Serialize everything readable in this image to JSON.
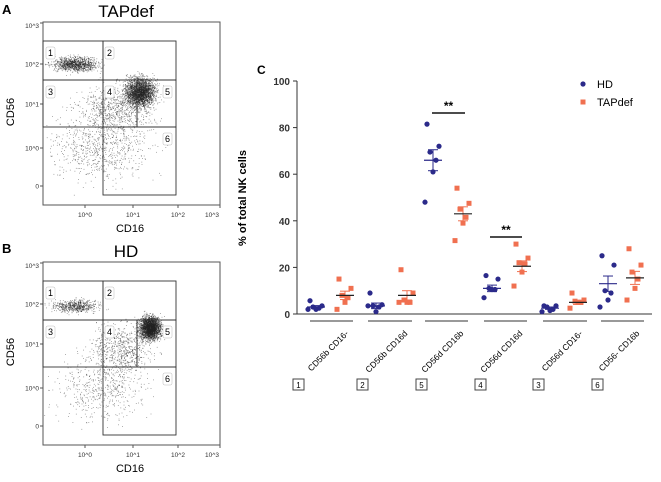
{
  "panels": {
    "A": {
      "letter": "A",
      "title": "TAPdef",
      "xlabel": "CD16",
      "ylabel": "CD56"
    },
    "B": {
      "letter": "B",
      "title": "HD",
      "xlabel": "CD16",
      "ylabel": "CD56"
    },
    "C": {
      "letter": "C"
    }
  },
  "flow_axes": {
    "x_ticks": [
      "10^0",
      "10^1",
      "10^2",
      "10^3"
    ],
    "y_ticks": [
      "10^3",
      "10^2",
      "10^1",
      "10^0",
      "0"
    ]
  },
  "gates": [
    "1",
    "2",
    "3",
    "4",
    "5",
    "6"
  ],
  "colors": {
    "HD": "#2b2a8a",
    "TAPdef": "#f07050"
  },
  "chart_data": {
    "type": "scatter",
    "ylabel": "% of total NK cells",
    "ylim": [
      0,
      100
    ],
    "yticks": [
      0,
      20,
      40,
      60,
      80,
      100
    ],
    "legend": {
      "placement": "top-right",
      "entries": [
        "HD",
        "TAPdef"
      ]
    },
    "categories": [
      {
        "label": "CD56b CD16-",
        "gate": "1"
      },
      {
        "label": "CD56b CD16d",
        "gate": "2"
      },
      {
        "label": "CD56d CD16b",
        "gate": "5"
      },
      {
        "label": "CD56d CD16d",
        "gate": "4"
      },
      {
        "label": "CD56d CD16-",
        "gate": "3"
      },
      {
        "label": "CD56- CD16b",
        "gate": "6"
      }
    ],
    "series": [
      {
        "name": "HD",
        "marker": "circle",
        "values": [
          [
            5.7,
            3.5,
            3,
            2.5,
            2,
            2
          ],
          [
            9,
            4,
            3.5,
            3,
            1,
            3.5
          ],
          [
            81.5,
            72,
            69.5,
            66,
            61,
            48
          ],
          [
            16.5,
            15,
            11,
            10.5,
            10.5,
            7
          ],
          [
            3.5,
            3.5,
            3,
            2,
            1.5,
            1
          ],
          [
            25,
            21,
            10,
            9,
            6,
            3
          ]
        ],
        "mean": [
          3,
          3.5,
          66,
          11,
          2.5,
          13
        ],
        "sem": [
          0.6,
          1.2,
          4.5,
          1.4,
          0.5,
          3.3
        ]
      },
      {
        "name": "TAPdef",
        "marker": "square",
        "values": [
          [
            15,
            11,
            8,
            7,
            5,
            2
          ],
          [
            19,
            9,
            6,
            5,
            5,
            5
          ],
          [
            54,
            47.5,
            45,
            41.5,
            39,
            31.5
          ],
          [
            30,
            24,
            22,
            21.5,
            18,
            12
          ],
          [
            9,
            6,
            5.5,
            5,
            5,
            2.5
          ],
          [
            28,
            21,
            18,
            15,
            11,
            6
          ]
        ],
        "mean": [
          8,
          8,
          43,
          20.5,
          5,
          15.5
        ],
        "sem": [
          1.8,
          2,
          3,
          2.3,
          0.9,
          2.8
        ]
      }
    ],
    "significance": [
      {
        "category": "CD56d CD16b",
        "label": "**"
      },
      {
        "category": "CD56d CD16d",
        "label": "**"
      }
    ]
  }
}
